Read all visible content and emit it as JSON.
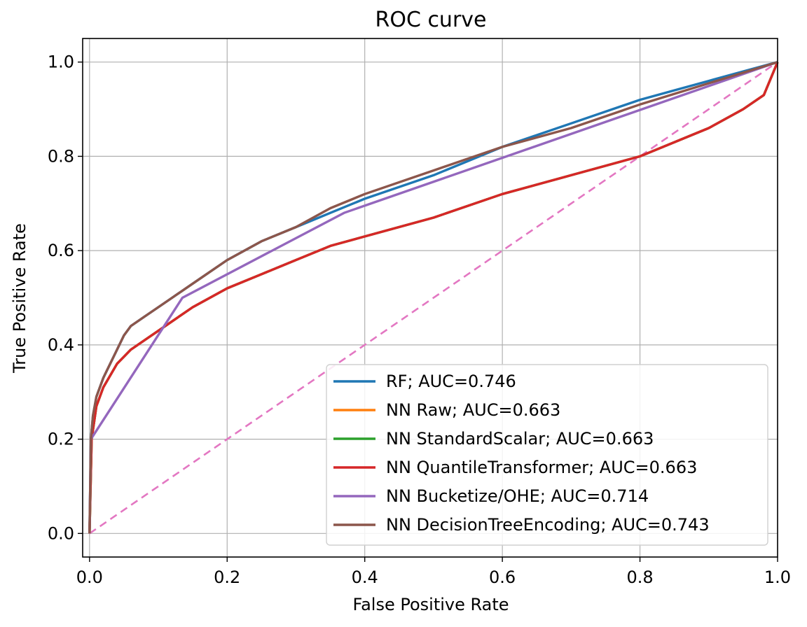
{
  "chart_data": {
    "type": "line",
    "title": "ROC curve",
    "xlabel": "False Positive Rate",
    "ylabel": "True Positive Rate",
    "xlim": [
      -0.01,
      1.0
    ],
    "ylim": [
      -0.05,
      1.05
    ],
    "xticks": [
      0.0,
      0.2,
      0.4,
      0.6,
      0.8,
      1.0
    ],
    "xtick_labels": [
      "0.0",
      "0.2",
      "0.4",
      "0.6",
      "0.8",
      "1.0"
    ],
    "yticks": [
      0.0,
      0.2,
      0.4,
      0.6,
      0.8,
      1.0
    ],
    "ytick_labels": [
      "0.0",
      "0.2",
      "0.4",
      "0.6",
      "0.8",
      "1.0"
    ],
    "grid": true,
    "legend_position": "lower-right",
    "series": [
      {
        "name": "RF; AUC=0.746",
        "color": "#1f77b4",
        "x": [
          0,
          0.002,
          0.005,
          0.01,
          0.02,
          0.03,
          0.04,
          0.05,
          0.06,
          0.08,
          0.1,
          0.12,
          0.15,
          0.2,
          0.25,
          0.3,
          0.35,
          0.4,
          0.5,
          0.6,
          0.7,
          0.8,
          0.9,
          1.0
        ],
        "y": [
          0,
          0.2,
          0.25,
          0.29,
          0.33,
          0.36,
          0.39,
          0.42,
          0.44,
          0.46,
          0.48,
          0.5,
          0.53,
          0.58,
          0.62,
          0.65,
          0.68,
          0.71,
          0.76,
          0.82,
          0.87,
          0.92,
          0.96,
          1.0
        ]
      },
      {
        "name": "NN Raw; AUC=0.663",
        "color": "#ff7f0e",
        "x": [
          0,
          0.003,
          0.01,
          0.02,
          0.04,
          0.06,
          0.08,
          0.1,
          0.12,
          0.15,
          0.2,
          0.25,
          0.3,
          0.35,
          0.4,
          0.5,
          0.6,
          0.7,
          0.8,
          0.9,
          0.95,
          0.98,
          1.0
        ],
        "y": [
          0,
          0.2,
          0.27,
          0.31,
          0.36,
          0.39,
          0.41,
          0.43,
          0.45,
          0.48,
          0.52,
          0.55,
          0.58,
          0.61,
          0.63,
          0.67,
          0.72,
          0.76,
          0.8,
          0.86,
          0.9,
          0.93,
          1.0
        ]
      },
      {
        "name": "NN StandardScalar; AUC=0.663",
        "color": "#2ca02c",
        "x": [
          0,
          0.003,
          0.01,
          0.02,
          0.04,
          0.06,
          0.08,
          0.1,
          0.12,
          0.15,
          0.2,
          0.25,
          0.3,
          0.35,
          0.4,
          0.5,
          0.6,
          0.7,
          0.8,
          0.9,
          0.95,
          0.98,
          1.0
        ],
        "y": [
          0,
          0.2,
          0.27,
          0.31,
          0.36,
          0.39,
          0.41,
          0.43,
          0.45,
          0.48,
          0.52,
          0.55,
          0.58,
          0.61,
          0.63,
          0.67,
          0.72,
          0.76,
          0.8,
          0.86,
          0.9,
          0.93,
          1.0
        ]
      },
      {
        "name": "NN QuantileTransformer; AUC=0.663",
        "color": "#d62728",
        "x": [
          0,
          0.003,
          0.01,
          0.02,
          0.04,
          0.06,
          0.08,
          0.1,
          0.12,
          0.15,
          0.2,
          0.25,
          0.3,
          0.35,
          0.4,
          0.5,
          0.6,
          0.7,
          0.8,
          0.9,
          0.95,
          0.98,
          1.0
        ],
        "y": [
          0,
          0.2,
          0.27,
          0.31,
          0.36,
          0.39,
          0.41,
          0.43,
          0.45,
          0.48,
          0.52,
          0.55,
          0.58,
          0.61,
          0.63,
          0.67,
          0.72,
          0.76,
          0.8,
          0.86,
          0.9,
          0.93,
          1.0
        ]
      },
      {
        "name": "NN Bucketize/OHE; AUC=0.714",
        "color": "#9467bd",
        "x": [
          0,
          0.002,
          0.135,
          0.37,
          1.0
        ],
        "y": [
          0,
          0.2,
          0.5,
          0.68,
          1.0
        ]
      },
      {
        "name": "NN DecisionTreeEncoding; AUC=0.743",
        "color": "#8c564b",
        "x": [
          0,
          0.002,
          0.005,
          0.01,
          0.02,
          0.03,
          0.04,
          0.05,
          0.06,
          0.08,
          0.1,
          0.12,
          0.15,
          0.2,
          0.25,
          0.3,
          0.35,
          0.4,
          0.5,
          0.6,
          0.7,
          0.8,
          0.9,
          1.0
        ],
        "y": [
          0,
          0.2,
          0.25,
          0.29,
          0.33,
          0.36,
          0.39,
          0.42,
          0.44,
          0.46,
          0.48,
          0.5,
          0.53,
          0.58,
          0.62,
          0.65,
          0.69,
          0.72,
          0.77,
          0.82,
          0.86,
          0.91,
          0.955,
          1.0
        ]
      }
    ],
    "reference_line": {
      "x": [
        0,
        1
      ],
      "y": [
        0,
        1
      ],
      "color": "#e377c2",
      "style": "dashed"
    }
  }
}
